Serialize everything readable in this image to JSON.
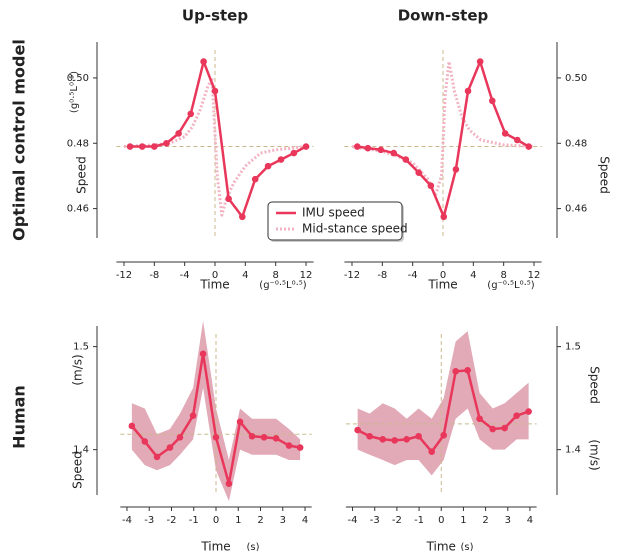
{
  "row_labels": [
    "Optimal control model",
    "Human"
  ],
  "chart_data": [
    {
      "type": "line",
      "title": "Up-step",
      "xlabel": "Time",
      "xunit": "(g⁻⁰·⁵L⁰·⁵)",
      "ylabel": "Speed",
      "yunit": "(g⁰·⁵L⁰·⁵)",
      "yaxis_side": "left",
      "xlim": [
        -13,
        13
      ],
      "xticks": [
        -12,
        -8,
        -4,
        0,
        4,
        8,
        12
      ],
      "ylim": [
        0.451,
        0.511
      ],
      "yticks": [
        0.46,
        0.48,
        {
          "value": 0.5,
          "label": "0.50"
        }
      ],
      "hline": 0.479,
      "vline": 0,
      "legend": "center",
      "series": [
        {
          "name": "IMU speed",
          "color": "#e8375a",
          "style": "solid",
          "markers": true,
          "x": [
            -11.2,
            -9.6,
            -8,
            -6.4,
            -4.8,
            -3.2,
            -1.5,
            0,
            1.8,
            3.6,
            5.3,
            7,
            8.7,
            10.4,
            12
          ],
          "values": [
            0.479,
            0.479,
            0.479,
            0.48,
            0.483,
            0.489,
            0.505,
            0.496,
            0.463,
            0.4575,
            0.469,
            0.473,
            0.475,
            0.477,
            0.479
          ]
        },
        {
          "name": "Mid-stance speed",
          "color": "#f2b3c3",
          "style": "dotted",
          "markers": false,
          "x": [
            -12,
            -8,
            -6,
            -4,
            -3,
            -2,
            -1,
            -0.4,
            0.3,
            0.9,
            1.5,
            2.5,
            4,
            6,
            8,
            12
          ],
          "values": [
            0.479,
            0.4795,
            0.48,
            0.482,
            0.485,
            0.49,
            0.497,
            0.5,
            0.47,
            0.458,
            0.463,
            0.468,
            0.473,
            0.477,
            0.478,
            0.479
          ]
        }
      ]
    },
    {
      "type": "line",
      "title": "Down-step",
      "xlabel": "Time",
      "xunit": "(g⁻⁰·⁵L⁰·⁵)",
      "ylabel": "Speed",
      "yaxis_side": "right",
      "xlim": [
        -13,
        13
      ],
      "xticks": [
        -12,
        -8,
        -4,
        0,
        4,
        8,
        12
      ],
      "ylim": [
        0.451,
        0.511
      ],
      "yticks": [
        0.46,
        0.48,
        {
          "value": 0.5,
          "label": "0.50"
        }
      ],
      "hline": 0.479,
      "vline": 0,
      "series": [
        {
          "color": "#e8375a",
          "style": "solid",
          "markers": true,
          "x": [
            -11.3,
            -9.9,
            -8.2,
            -6.5,
            -4.9,
            -3.2,
            -1.6,
            0.1,
            1.7,
            3.3,
            4.9,
            6.5,
            8.2,
            9.8,
            11.3
          ],
          "values": [
            0.479,
            0.4785,
            0.478,
            0.477,
            0.475,
            0.471,
            0.467,
            0.4575,
            0.472,
            0.496,
            0.505,
            0.493,
            0.483,
            0.481,
            0.479
          ]
        },
        {
          "color": "#f2b3c3",
          "style": "dotted",
          "markers": false,
          "x": [
            -12,
            -8,
            -6,
            -4,
            -2,
            -1,
            -0.2,
            0.3,
            0.8,
            1.5,
            2.5,
            3.5,
            5,
            8,
            12
          ],
          "values": [
            0.479,
            0.4775,
            0.476,
            0.474,
            0.469,
            0.464,
            0.47,
            0.495,
            0.505,
            0.496,
            0.488,
            0.484,
            0.481,
            0.4795,
            0.479
          ]
        }
      ]
    },
    {
      "type": "band_line",
      "xlabel": "Time",
      "xunit": "(s)",
      "ylabel": "Speed",
      "yunit": "(m/s)",
      "yaxis_side": "left",
      "xlim": [
        -4.3,
        4.3
      ],
      "xticks": [
        -4,
        -3,
        -2,
        -1,
        0,
        1,
        2,
        3,
        4
      ],
      "ylim": [
        1.356,
        1.52
      ],
      "yticks": [
        1.4,
        1.5
      ],
      "hline": 1.415,
      "vline": 0,
      "series": [
        {
          "color": "#e8375a",
          "band_color": "#d88c9f",
          "style": "solid",
          "markers": true,
          "x": [
            -3.78,
            -3.2,
            -2.65,
            -2.07,
            -1.62,
            -1.03,
            -0.58,
            0,
            0.58,
            1.08,
            1.62,
            2.16,
            2.7,
            3.28,
            3.78
          ],
          "values": [
            1.423,
            1.408,
            1.393,
            1.402,
            1.412,
            1.433,
            1.493,
            1.412,
            1.367,
            1.427,
            1.413,
            1.412,
            1.411,
            1.404,
            1.402
          ],
          "lower": [
            1.4,
            1.385,
            1.38,
            1.385,
            1.395,
            1.41,
            1.46,
            1.38,
            1.35,
            1.4,
            1.395,
            1.395,
            1.395,
            1.39,
            1.39
          ],
          "upper": [
            1.445,
            1.44,
            1.415,
            1.42,
            1.435,
            1.46,
            1.525,
            1.44,
            1.39,
            1.44,
            1.43,
            1.43,
            1.43,
            1.42,
            1.41
          ]
        }
      ]
    },
    {
      "type": "band_line",
      "xlabel": "Time",
      "xunit": "(s)",
      "ylabel": "Speed",
      "yunit": "(m/s)",
      "yaxis_side": "right",
      "xlim": [
        -4.3,
        4.3
      ],
      "xticks": [
        -4,
        -3,
        -2,
        -1,
        0,
        1,
        2,
        3,
        4
      ],
      "ylim": [
        1.356,
        1.52
      ],
      "yticks": [
        1.4,
        1.5
      ],
      "hline": 1.425,
      "vline": 0,
      "series": [
        {
          "color": "#e8375a",
          "band_color": "#d88c9f",
          "style": "solid",
          "markers": true,
          "x": [
            -3.77,
            -3.23,
            -2.64,
            -2.1,
            -1.56,
            -1.02,
            -0.43,
            0.11,
            0.65,
            1.19,
            1.73,
            2.32,
            2.86,
            3.4,
            3.94
          ],
          "values": [
            1.419,
            1.413,
            1.41,
            1.409,
            1.41,
            1.413,
            1.398,
            1.414,
            1.476,
            1.477,
            1.43,
            1.42,
            1.421,
            1.433,
            1.437
          ],
          "lower": [
            1.4,
            1.395,
            1.39,
            1.385,
            1.39,
            1.39,
            1.375,
            1.39,
            1.43,
            1.44,
            1.41,
            1.4,
            1.4,
            1.41,
            1.41
          ],
          "upper": [
            1.44,
            1.435,
            1.445,
            1.44,
            1.43,
            1.44,
            1.43,
            1.45,
            1.505,
            1.515,
            1.455,
            1.44,
            1.445,
            1.455,
            1.465
          ]
        }
      ]
    }
  ]
}
